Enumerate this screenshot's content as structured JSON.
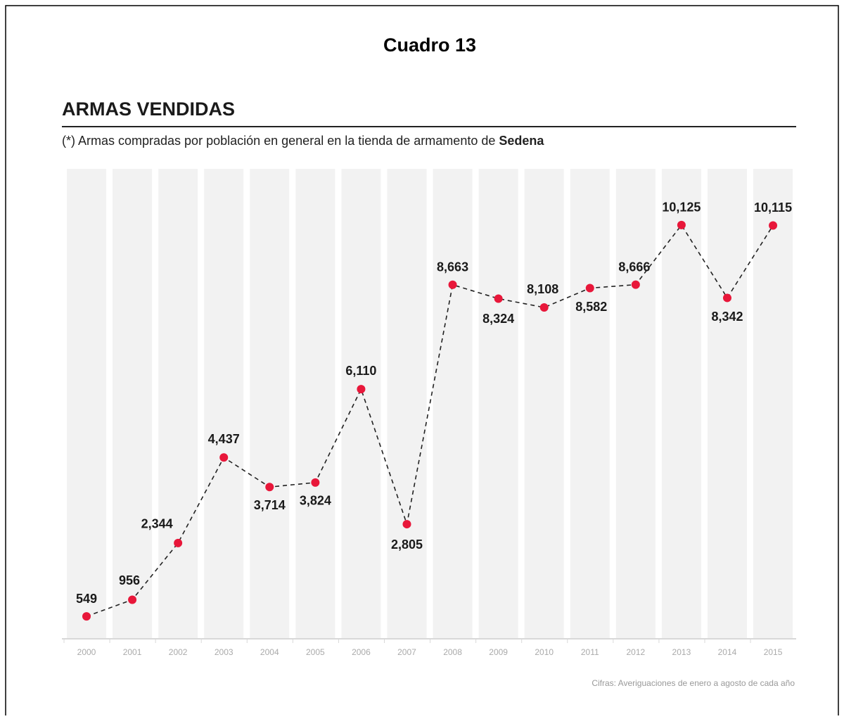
{
  "chart_data": {
    "type": "line",
    "heading": "Cuadro 13",
    "title": "ARMAS VENDIDAS",
    "subtitle": "(*) Armas compradas por población en general en la tienda de armamento de",
    "subtitle_emphasis": "Sedena",
    "source": "Cifras: Averiguaciones de enero a agosto de cada año",
    "categories": [
      "2000",
      "2001",
      "2002",
      "2003",
      "2004",
      "2005",
      "2006",
      "2007",
      "2008",
      "2009",
      "2010",
      "2011",
      "2012",
      "2013",
      "2014",
      "2015"
    ],
    "series": [
      {
        "name": "Armas vendidas",
        "color": "#e8173a",
        "values": [
          549,
          956,
          2344,
          4437,
          3714,
          3824,
          6110,
          2805,
          8663,
          8324,
          8108,
          8582,
          8666,
          10125,
          8342,
          10115
        ],
        "value_labels": [
          "549",
          "956",
          "2,344",
          "4,437",
          "3,714",
          "3,824",
          "6,110",
          "2,805",
          "8,663",
          "8,324",
          "8,108",
          "8,582",
          "8,666",
          "10,125",
          "8,342",
          "10,115"
        ]
      }
    ],
    "ylim": [
      0,
      11500
    ],
    "line_style": "dashed",
    "band_color": "#f2f2f2"
  }
}
